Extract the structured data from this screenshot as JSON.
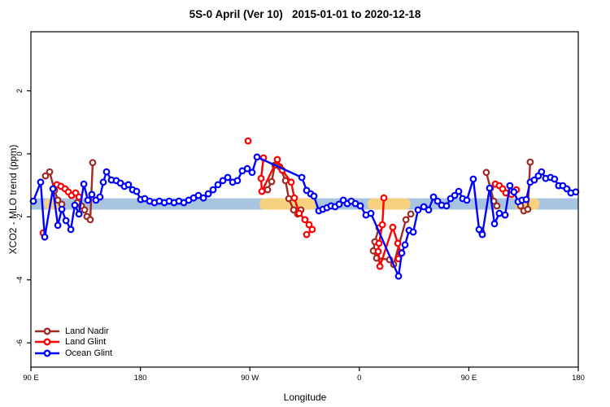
{
  "title": "5S-0 April (Ver 10)   2015-01-01 to 2020-12-18",
  "colors": {
    "land_nadir": "#9E2B25",
    "land_glint": "#FF0000",
    "ocean_glint": "#0000FF",
    "band_ocean": "#A9C4E1",
    "band_land": "#F7D27E",
    "frame": "#000000",
    "background": "#FFFFFF"
  },
  "legend": {
    "items": [
      {
        "label": "Land Nadir",
        "color_key": "land_nadir"
      },
      {
        "label": "Land Glint",
        "color_key": "land_glint"
      },
      {
        "label": "Ocean Glint",
        "color_key": "ocean_glint"
      }
    ]
  },
  "axes": {
    "x": {
      "label": "Longitude",
      "ticks_deg": [
        0,
        90,
        180,
        270,
        360,
        450
      ],
      "tick_labels": [
        "90 E",
        "180",
        "90 W",
        "0",
        "90 E",
        "180"
      ],
      "range_deg": [
        0,
        450
      ]
    },
    "y": {
      "label": "XCO2 - MLO trend (ppm)",
      "ticks": [
        2,
        0,
        -2,
        -4,
        -6
      ],
      "range": [
        -6.8,
        3.9
      ]
    }
  },
  "chart_data": {
    "type": "scatter",
    "title": "5S-0 April (Ver 10)   2015-01-01 to 2020-12-18",
    "xlabel": "Longitude",
    "ylabel": "XCO2 - MLO trend (ppm)",
    "x_axis_note": "x values are degrees along the axis starting at 90E and wrapping eastward through the dateline (0=90E, 90=180, 180=90W, 270=0, 360=90E, 450=180)",
    "ylim": [
      -6.8,
      3.9
    ],
    "band": {
      "description": "horizontal surface-type strip: light blue = ocean, tan = land",
      "y_ppm": [
        -1.41,
        -1.77
      ],
      "land_segments_deg": [
        [
          11,
          25
        ],
        [
          188,
          235
        ],
        [
          277,
          312
        ],
        [
          398,
          418
        ]
      ]
    },
    "series": [
      {
        "name": "Land Nadir",
        "color_key": "land_nadir",
        "segments": [
          [
            [
              12,
              -0.7
            ],
            [
              15.4,
              -0.57
            ],
            [
              19.4,
              -1.16
            ],
            [
              22.1,
              -1.47
            ],
            [
              25.4,
              -1.6
            ]
          ],
          [
            [
              38.1,
              -1.55
            ],
            [
              41.5,
              -1.65
            ],
            [
              44.1,
              -1.78
            ],
            [
              46.1,
              -1.99
            ],
            [
              48.8,
              -2.09
            ],
            [
              50.8,
              -0.28
            ]
          ],
          [
            [
              194.6,
              -1.14
            ],
            [
              197.9,
              -0.88
            ],
            [
              200.6,
              -0.36
            ],
            [
              204.6,
              -0.41
            ],
            [
              209.3,
              -0.85
            ],
            [
              212,
              -1.42
            ],
            [
              216,
              -1.78
            ],
            [
              219.3,
              -1.91
            ],
            [
              222,
              -1.78
            ]
          ],
          [
            [
              286.2,
              -2.35
            ],
            [
              282.8,
              -2.79
            ],
            [
              281.5,
              -3.08
            ],
            [
              284.2,
              -3.31
            ],
            [
              294.9,
              -3.36
            ],
            [
              298.2,
              -3.51
            ],
            [
              308.3,
              -2.09
            ],
            [
              312.3,
              -1.91
            ]
          ],
          [
            [
              374.4,
              -0.59
            ],
            [
              377.8,
              -1.09
            ],
            [
              380.5,
              -1.5
            ],
            [
              383.1,
              -1.65
            ]
          ],
          [
            [
              402.5,
              -1.65
            ],
            [
              405.2,
              -1.81
            ],
            [
              408.5,
              -1.76
            ],
            [
              410.5,
              -0.26
            ]
          ]
        ]
      },
      {
        "name": "Land Glint",
        "color_key": "land_glint",
        "segments": [
          [
            [
              10,
              -2.51
            ]
          ],
          [
            [
              21.4,
              -0.98
            ],
            [
              24.7,
              -1.03
            ],
            [
              28.1,
              -1.11
            ],
            [
              30.8,
              -1.21
            ],
            [
              33.4,
              -1.32
            ],
            [
              36.8,
              -1.24
            ],
            [
              39.5,
              -1.37
            ]
          ],
          [
            [
              178.5,
              0.41
            ]
          ],
          [
            [
              191.2,
              -0.13
            ],
            [
              189.2,
              -0.78
            ],
            [
              189.9,
              -1.19
            ],
            [
              202.6,
              -0.18
            ],
            [
              206.6,
              -0.52
            ],
            [
              214,
              -0.9
            ],
            [
              216.6,
              -1.4
            ],
            [
              220.6,
              -1.89
            ],
            [
              225.3,
              -2.09
            ],
            [
              228.7,
              -2.25
            ],
            [
              231.3,
              -2.4
            ],
            [
              226.7,
              -2.56
            ]
          ],
          [
            [
              290.2,
              -1.4
            ],
            [
              288.9,
              -2.25
            ],
            [
              286.2,
              -2.84
            ],
            [
              285.5,
              -3.1
            ],
            [
              286.9,
              -3.57
            ],
            [
              297.5,
              -2.33
            ],
            [
              301.6,
              -2.84
            ],
            [
              303.6,
              -3.13
            ],
            [
              302.2,
              -3.33
            ]
          ],
          [
            [
              370.4,
              -2.48
            ]
          ],
          [
            [
              381.8,
              -0.96
            ],
            [
              385.1,
              -1.01
            ],
            [
              387.8,
              -1.11
            ],
            [
              390.5,
              -1.24
            ],
            [
              395.1,
              -1.29
            ],
            [
              399.1,
              -1.14
            ]
          ]
        ]
      },
      {
        "name": "Ocean Glint",
        "color_key": "ocean_glint",
        "segments": [
          [
            [
              2,
              -1.5
            ],
            [
              8,
              -0.9
            ],
            [
              11.4,
              -2.64
            ],
            [
              18.1,
              -1.11
            ],
            [
              22.1,
              -2.27
            ],
            [
              25.4,
              -1.76
            ],
            [
              28.8,
              -2.12
            ],
            [
              32.8,
              -2.4
            ],
            [
              36.1,
              -1.63
            ],
            [
              39.5,
              -1.91
            ],
            [
              43.5,
              -0.96
            ],
            [
              46.8,
              -1.47
            ],
            [
              50.1,
              -1.29
            ],
            [
              53.5,
              -1.47
            ],
            [
              56.8,
              -1.37
            ],
            [
              59.5,
              -0.9
            ],
            [
              62.2,
              -0.57
            ],
            [
              66.2,
              -0.83
            ],
            [
              70.2,
              -0.85
            ],
            [
              73.6,
              -0.93
            ],
            [
              76.9,
              -1.03
            ],
            [
              80.2,
              -0.98
            ],
            [
              83.6,
              -1.14
            ],
            [
              86.9,
              -1.19
            ],
            [
              90.3,
              -1.45
            ],
            [
              93.6,
              -1.42
            ],
            [
              97.6,
              -1.5
            ],
            [
              101.6,
              -1.55
            ],
            [
              105.6,
              -1.5
            ],
            [
              109.7,
              -1.55
            ],
            [
              113.7,
              -1.5
            ],
            [
              117.7,
              -1.55
            ],
            [
              121.7,
              -1.5
            ],
            [
              125.7,
              -1.55
            ],
            [
              129.7,
              -1.47
            ],
            [
              133.7,
              -1.4
            ],
            [
              137.7,
              -1.32
            ],
            [
              141.8,
              -1.4
            ],
            [
              145.8,
              -1.27
            ],
            [
              149.8,
              -1.14
            ],
            [
              153.8,
              -0.98
            ],
            [
              157.8,
              -0.85
            ],
            [
              161.8,
              -0.75
            ],
            [
              165.8,
              -0.9
            ],
            [
              169.8,
              -0.85
            ],
            [
              173.8,
              -0.54
            ],
            [
              177.9,
              -0.47
            ],
            [
              181.9,
              -0.59
            ],
            [
              185.9,
              -0.1
            ],
            [
              222.7,
              -0.75
            ],
            [
              226.7,
              -1.16
            ],
            [
              230,
              -1.27
            ],
            [
              232.7,
              -1.34
            ],
            [
              236.7,
              -1.81
            ],
            [
              240,
              -1.76
            ],
            [
              243.4,
              -1.71
            ],
            [
              246.7,
              -1.65
            ],
            [
              250.1,
              -1.68
            ],
            [
              253.4,
              -1.6
            ],
            [
              256.8,
              -1.47
            ],
            [
              260.1,
              -1.58
            ],
            [
              263.4,
              -1.5
            ],
            [
              266.8,
              -1.58
            ],
            [
              270.8,
              -1.65
            ],
            [
              275.5,
              -1.94
            ],
            [
              279.5,
              -1.89
            ],
            [
              302.2,
              -3.88
            ],
            [
              304.9,
              -3.15
            ],
            [
              307.6,
              -2.89
            ],
            [
              310.9,
              -2.43
            ],
            [
              314.3,
              -2.48
            ],
            [
              318.3,
              -1.78
            ],
            [
              323,
              -1.68
            ],
            [
              327,
              -1.78
            ],
            [
              331,
              -1.37
            ],
            [
              334.3,
              -1.5
            ],
            [
              337.7,
              -1.63
            ],
            [
              341.7,
              -1.65
            ],
            [
              345,
              -1.42
            ],
            [
              348.4,
              -1.32
            ],
            [
              351.7,
              -1.19
            ],
            [
              355,
              -1.42
            ],
            [
              358.4,
              -1.47
            ],
            [
              363.7,
              -0.8
            ],
            [
              368.4,
              -2.4
            ],
            [
              371.1,
              -2.56
            ],
            [
              377.1,
              -1.09
            ],
            [
              381.1,
              -2.22
            ],
            [
              385.1,
              -1.89
            ],
            [
              389.8,
              -1.94
            ],
            [
              393.8,
              -1.01
            ],
            [
              397.1,
              -1.21
            ],
            [
              400.5,
              -1.52
            ],
            [
              403.8,
              -1.47
            ],
            [
              407.2,
              -1.45
            ],
            [
              410.5,
              -0.9
            ],
            [
              413.8,
              -0.83
            ],
            [
              417.2,
              -0.7
            ],
            [
              419.8,
              -0.57
            ],
            [
              423.2,
              -0.78
            ],
            [
              427.2,
              -0.75
            ],
            [
              430.5,
              -0.8
            ],
            [
              433.9,
              -1.01
            ],
            [
              437.2,
              -1.01
            ],
            [
              440.6,
              -1.11
            ],
            [
              443.9,
              -1.24
            ],
            [
              447.9,
              -1.21
            ]
          ]
        ]
      }
    ]
  }
}
